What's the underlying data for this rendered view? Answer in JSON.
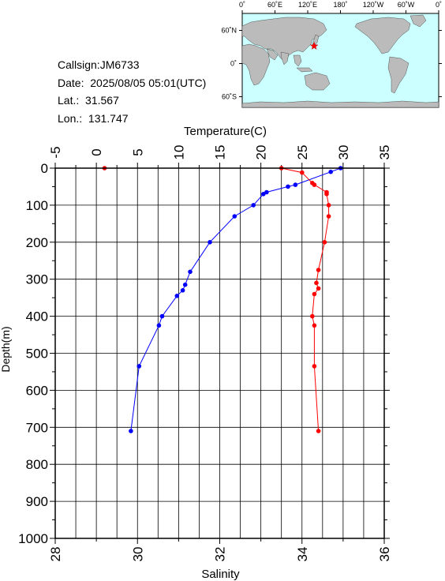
{
  "header": {
    "callsign_label": "Callsign:",
    "callsign": "JM6733",
    "date_label": "Date:",
    "date": "2025/08/05 05:01(UTC)",
    "lat_label": "Lat.:",
    "lat": "31.567",
    "lon_label": "Lon.:",
    "lon": "131.747"
  },
  "map": {
    "top_labels": [
      "0˚",
      "60˚E",
      "120˚E",
      "180˚",
      "120˚W",
      "60˚W",
      "0˚"
    ],
    "side_labels": [
      "60˚N",
      "0˚",
      "60˚S"
    ],
    "ocean_color": "#ccffff",
    "land_color": "#bbbbbb",
    "marker": "star",
    "marker_color": "#ff0000"
  },
  "chart_data": {
    "type": "line",
    "ylabel": "Depth(m)",
    "ylim": [
      1000,
      0
    ],
    "yticks": [
      0,
      100,
      200,
      300,
      400,
      500,
      600,
      700,
      800,
      900,
      1000
    ],
    "grid": true,
    "axes": {
      "temperature": {
        "label": "Temperature(C)",
        "position": "top",
        "lim": [
          -5,
          35
        ],
        "ticks": [
          -5,
          0,
          5,
          10,
          15,
          20,
          25,
          30,
          35
        ]
      },
      "salinity": {
        "label": "Salinity",
        "position": "bottom",
        "lim": [
          28,
          36
        ],
        "ticks": [
          28,
          30,
          32,
          34,
          36
        ]
      }
    },
    "series": [
      {
        "axis": "temperature",
        "color": "#0000ff",
        "depth": [
          0,
          10,
          45,
          50,
          65,
          70,
          100,
          130,
          200,
          280,
          315,
          330,
          345,
          400,
          425,
          535,
          710
        ],
        "values": [
          29.7,
          28.5,
          24.2,
          23.3,
          20.7,
          20.3,
          19.1,
          16.8,
          13.8,
          11.4,
          10.8,
          10.5,
          9.8,
          8.0,
          7.6,
          5.2,
          4.2
        ]
      },
      {
        "axis": "salinity",
        "color": "#ff0000",
        "depth": [
          0,
          0,
          12,
          40,
          45,
          65,
          70,
          100,
          130,
          200,
          275,
          310,
          325,
          340,
          400,
          425,
          535,
          710
        ],
        "values": [
          29.2,
          33.5,
          34.0,
          34.25,
          34.3,
          34.6,
          34.6,
          34.65,
          34.65,
          34.55,
          34.4,
          34.35,
          34.4,
          34.3,
          34.25,
          34.3,
          34.3,
          34.4
        ]
      }
    ]
  }
}
